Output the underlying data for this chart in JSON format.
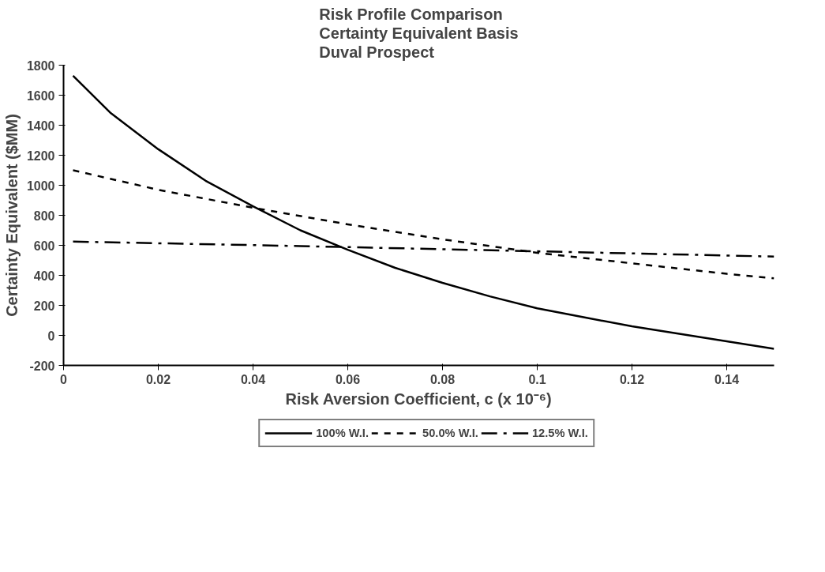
{
  "chart_data": {
    "type": "line",
    "title": "Risk Profile Comparison\nCertainty Equivalent Basis\nDuval Prospect",
    "xlabel": "Risk Aversion Coefficient, c (x 10⁻⁶)",
    "ylabel": "Certainty Equivalent ($MM)",
    "xlim": [
      0,
      0.15
    ],
    "xticks": [
      0,
      0.02,
      0.04,
      0.06,
      0.08,
      0.1,
      0.12,
      0.14
    ],
    "ylim": [
      -200,
      1800
    ],
    "yticks": [
      -200,
      0,
      200,
      400,
      600,
      800,
      1000,
      1200,
      1400,
      1600,
      1800
    ],
    "grid": false,
    "legend": "bottom",
    "series": [
      {
        "name": "100% W.I.",
        "color": "#000000",
        "line_style": "solid",
        "x": [
          0.002,
          0.01,
          0.02,
          0.03,
          0.04,
          0.05,
          0.06,
          0.07,
          0.08,
          0.09,
          0.1,
          0.11,
          0.12,
          0.13,
          0.14,
          0.15
        ],
        "values": [
          1730,
          1480,
          1240,
          1030,
          860,
          700,
          570,
          450,
          350,
          260,
          180,
          120,
          60,
          10,
          -40,
          -90
        ]
      },
      {
        "name": "50.0% W.I.",
        "color": "#000000",
        "line_style": "dashed",
        "x": [
          0.002,
          0.02,
          0.04,
          0.06,
          0.08,
          0.1,
          0.12,
          0.14,
          0.15
        ],
        "values": [
          1100,
          970,
          850,
          740,
          640,
          550,
          480,
          410,
          380
        ]
      },
      {
        "name": "12.5% W.I.",
        "color": "#000000",
        "line_style": "dashdot",
        "x": [
          0.002,
          0.05,
          0.1,
          0.15
        ],
        "values": [
          625,
          595,
          560,
          525
        ]
      }
    ]
  }
}
